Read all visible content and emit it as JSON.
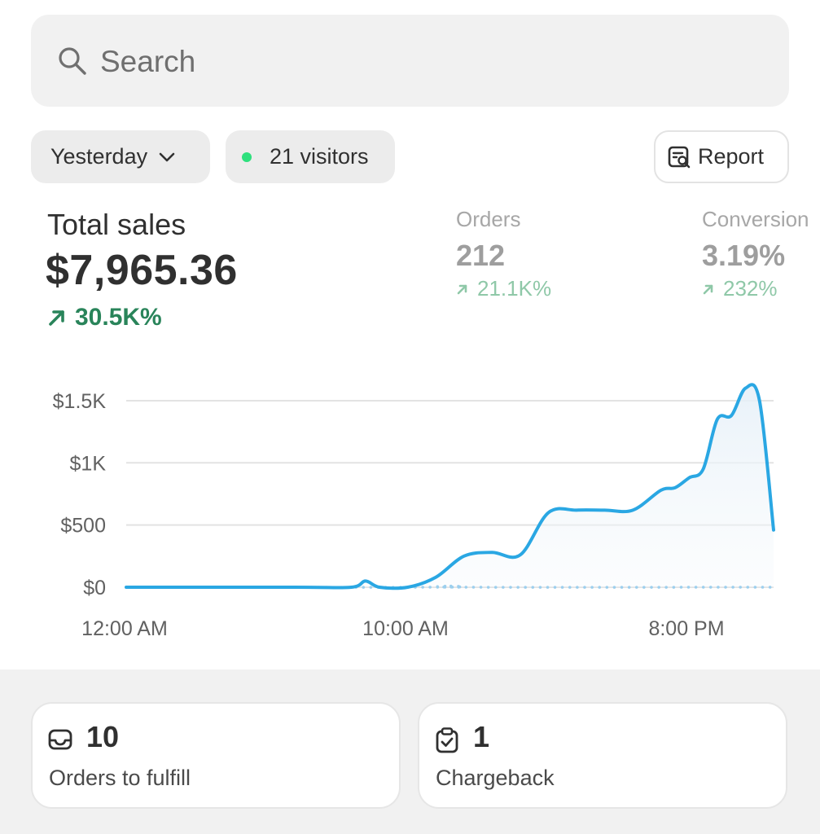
{
  "search": {
    "placeholder": "Search"
  },
  "filters": {
    "date_label": "Yesterday",
    "visitors_label": "21 visitors",
    "report_label": "Report"
  },
  "total_sales": {
    "label": "Total sales",
    "value": "$7,965.36",
    "change": "30.5K%"
  },
  "metrics": [
    {
      "label": "Orders",
      "value": "212",
      "change": "21.1K%"
    },
    {
      "label": "Conversion",
      "value": "3.19%",
      "change": "232%"
    }
  ],
  "colors": {
    "accent_line": "#2aa7e3",
    "positive": "#29845a",
    "live_dot": "#2ee07d"
  },
  "chart_data": {
    "type": "line",
    "y_ticks": [
      "$1.5K",
      "$1K",
      "$500",
      "$0"
    ],
    "y_tick_values": [
      1500,
      1000,
      500,
      0
    ],
    "x_ticks": [
      "12:00 AM",
      "10:00 AM",
      "8:00 PM"
    ],
    "x_tick_hours": [
      0,
      10,
      20
    ],
    "ylim": [
      0,
      1600
    ],
    "xlim": [
      0,
      23
    ],
    "grid": true,
    "series": [
      {
        "values_x_hours": [
          0,
          6,
          8,
          8.5,
          9,
          10,
          11,
          12,
          13,
          14,
          15,
          16,
          17,
          18,
          19,
          19.5,
          20,
          20.5,
          21,
          21.5,
          22,
          22.5,
          23
        ],
        "values_y": [
          0,
          0,
          0,
          50,
          0,
          0,
          80,
          250,
          280,
          260,
          600,
          620,
          620,
          620,
          780,
          800,
          880,
          950,
          1350,
          1380,
          1600,
          1500,
          460
        ]
      },
      {
        "style": "dotted",
        "values_x_hours": [
          0,
          11,
          11.5,
          12,
          23
        ],
        "values_y": [
          0,
          0,
          10,
          0,
          0
        ]
      }
    ]
  },
  "cards": [
    {
      "count": "10",
      "label": "Orders to fulfill",
      "icon": "inbox-icon"
    },
    {
      "count": "1",
      "label": "Chargeback",
      "icon": "clipboard-check-icon"
    }
  ]
}
